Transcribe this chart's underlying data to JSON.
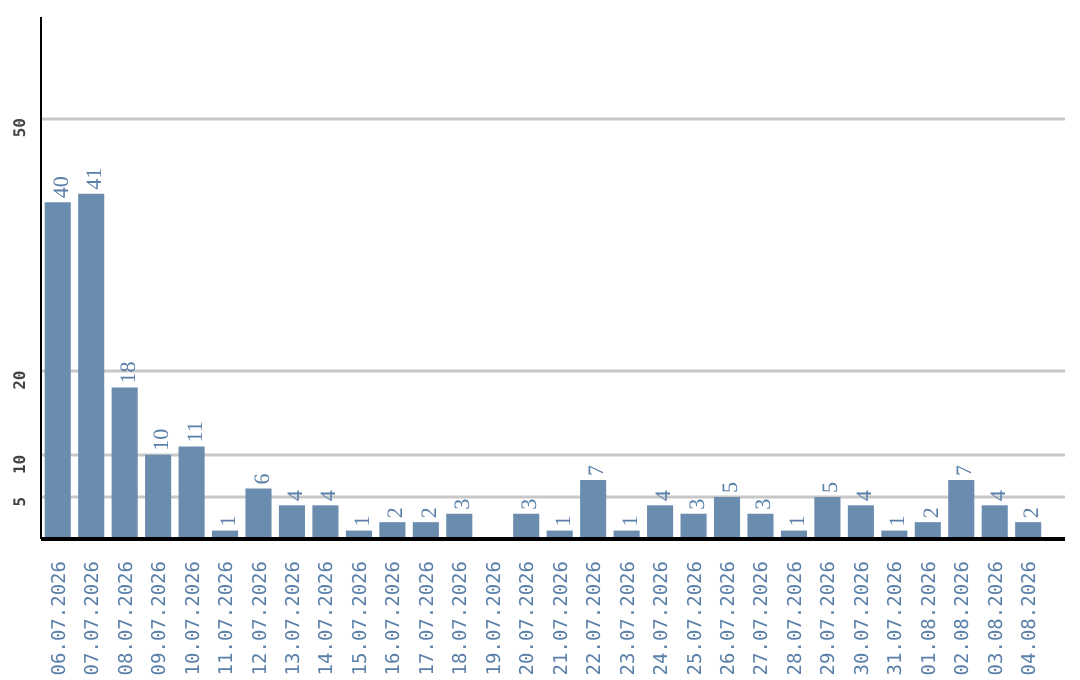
{
  "chart_data": {
    "type": "bar",
    "categories": [
      "06.07.2026",
      "07.07.2026",
      "08.07.2026",
      "09.07.2026",
      "10.07.2026",
      "11.07.2026",
      "12.07.2026",
      "13.07.2026",
      "14.07.2026",
      "15.07.2026",
      "16.07.2026",
      "17.07.2026",
      "18.07.2026",
      "19.07.2026",
      "20.07.2026",
      "21.07.2026",
      "22.07.2026",
      "23.07.2026",
      "24.07.2026",
      "25.07.2026",
      "26.07.2026",
      "27.07.2026",
      "28.07.2026",
      "29.07.2026",
      "30.07.2026",
      "31.07.2026",
      "01.08.2026",
      "02.08.2026",
      "03.08.2026",
      "04.08.2026"
    ],
    "values": [
      40,
      41,
      18,
      10,
      11,
      1,
      6,
      4,
      4,
      1,
      2,
      2,
      3,
      null,
      3,
      1,
      7,
      1,
      4,
      3,
      5,
      3,
      1,
      5,
      4,
      1,
      2,
      7,
      4,
      2
    ],
    "color": "#6a8caf",
    "ylim": [
      0,
      62
    ],
    "yticks": [
      5,
      10,
      20,
      50
    ],
    "grid": "y",
    "data_labels": true
  }
}
